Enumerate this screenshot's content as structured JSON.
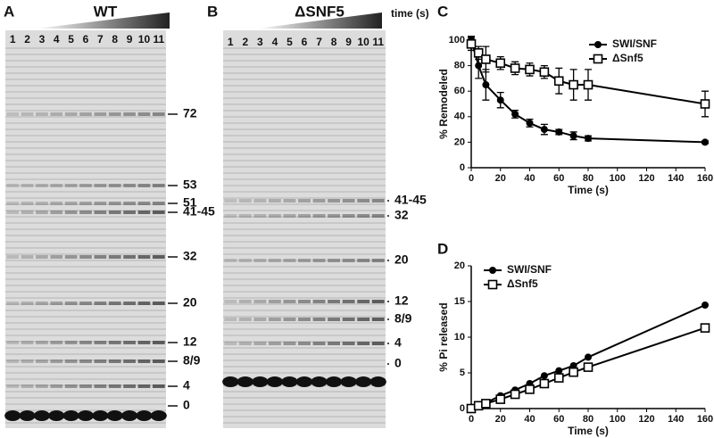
{
  "panel_labels": [
    "A",
    "B",
    "C",
    "D"
  ],
  "gels": [
    {
      "title": "WT",
      "lanes": [
        "1",
        "2",
        "3",
        "4",
        "5",
        "6",
        "7",
        "8",
        "9",
        "10",
        "11"
      ],
      "markers": [
        "72",
        "53",
        "51",
        "41-45",
        "32",
        "20",
        "12",
        "8/9",
        "4",
        "0"
      ]
    },
    {
      "title": "ΔSNF5",
      "axis_label": "time (s)",
      "lanes": [
        "1",
        "2",
        "3",
        "4",
        "5",
        "6",
        "7",
        "8",
        "9",
        "10",
        "11"
      ],
      "markers": [
        "41-45",
        "32",
        "20",
        "12",
        "8/9",
        "4",
        "0"
      ]
    }
  ],
  "chart_data": [
    {
      "type": "scatter",
      "xlabel": "Time (s)",
      "ylabel": "% Remodeled",
      "xlim": [
        0,
        160
      ],
      "xticks": [
        0,
        20,
        40,
        60,
        80,
        100,
        120,
        140,
        160
      ],
      "ylim": [
        0,
        100
      ],
      "yticks": [
        0,
        20,
        40,
        60,
        80,
        100
      ],
      "legend": "upper right",
      "series": [
        {
          "name": "SWI/SNF",
          "color": "#000000",
          "marker": "circle",
          "x": [
            0,
            5,
            10,
            20,
            30,
            40,
            50,
            60,
            70,
            80,
            160
          ],
          "values": [
            100,
            80,
            65,
            53,
            42,
            35,
            30,
            28,
            25,
            23,
            20
          ],
          "errors": [
            3,
            10,
            12,
            6,
            3,
            3,
            4,
            2,
            3,
            2,
            1
          ]
        },
        {
          "name": "ΔSnf5",
          "color": "#000000",
          "marker": "square",
          "x": [
            0,
            5,
            10,
            20,
            30,
            40,
            50,
            60,
            70,
            80,
            160
          ],
          "values": [
            97,
            90,
            85,
            82,
            78,
            77,
            75,
            68,
            65,
            65,
            50
          ],
          "errors": [
            5,
            5,
            10,
            5,
            5,
            5,
            5,
            10,
            12,
            12,
            10
          ]
        }
      ]
    },
    {
      "type": "scatter",
      "xlabel": "Time (s)",
      "ylabel": "% Pi released",
      "xlim": [
        0,
        160
      ],
      "xticks": [
        0,
        20,
        40,
        60,
        80,
        100,
        120,
        140,
        160
      ],
      "ylim": [
        0,
        20
      ],
      "yticks": [
        0,
        5,
        10,
        15,
        20
      ],
      "legend": "upper left",
      "series": [
        {
          "name": "SWI/SNF",
          "color": "#000000",
          "marker": "circle",
          "x": [
            0,
            5,
            10,
            20,
            30,
            40,
            50,
            60,
            70,
            80,
            160
          ],
          "values": [
            0,
            0.5,
            0.8,
            1.8,
            2.6,
            3.5,
            4.6,
            5.3,
            6,
            7.2,
            14.5
          ]
        },
        {
          "name": "ΔSnf5",
          "color": "#000000",
          "marker": "square",
          "x": [
            0,
            5,
            10,
            20,
            30,
            40,
            50,
            60,
            70,
            80,
            160
          ],
          "values": [
            0,
            0.4,
            0.7,
            1.3,
            2,
            2.7,
            3.5,
            4.3,
            5.1,
            5.8,
            11.3
          ]
        }
      ]
    }
  ]
}
